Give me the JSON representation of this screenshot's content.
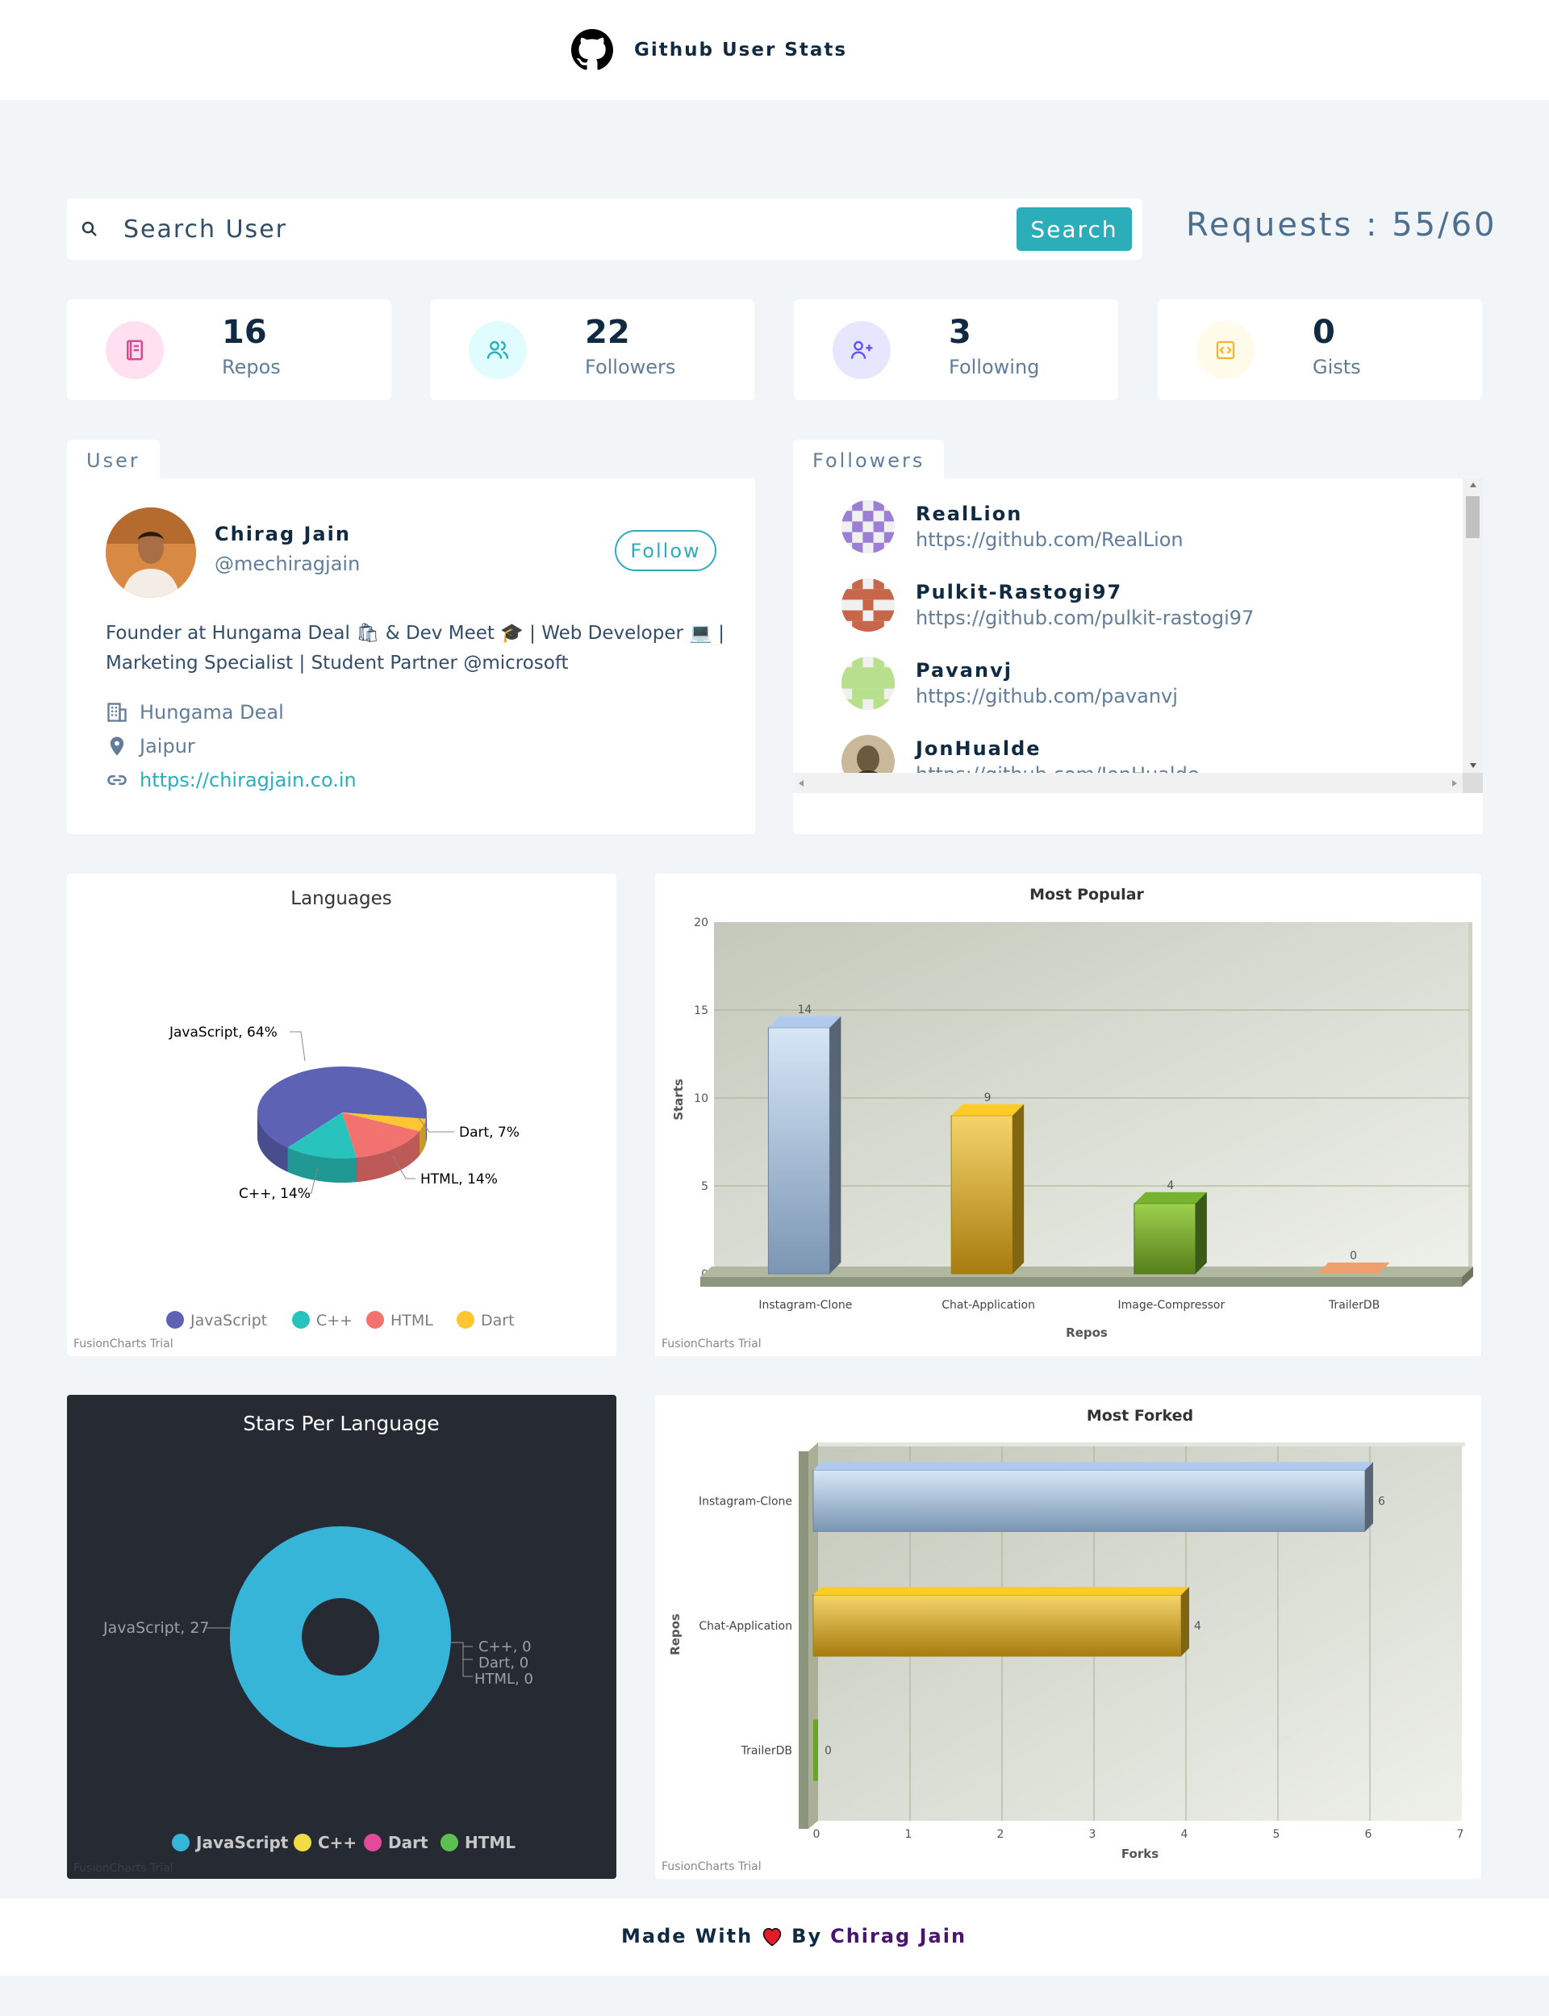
{
  "header": {
    "title": "Github User Stats",
    "logo_icon": "github-icon"
  },
  "search": {
    "placeholder": "Search User",
    "button_label": "Search",
    "requests_text": "Requests : 55/60"
  },
  "stats": [
    {
      "value": "16",
      "label": "Repos",
      "icon": "repo-book-icon",
      "color": "#da4a91",
      "bg": "#ffe0f0"
    },
    {
      "value": "22",
      "label": "Followers",
      "icon": "users-icon",
      "color": "#2caeba",
      "bg": "#e0fcff"
    },
    {
      "value": "3",
      "label": "Following",
      "icon": "user-plus-icon",
      "color": "#5d55fa",
      "bg": "#e6e6ff"
    },
    {
      "value": "0",
      "label": "Gists",
      "icon": "code-icon",
      "color": "#f0b429",
      "bg": "#fffbea"
    }
  ],
  "user": {
    "tab_label": "User",
    "name": "Chirag Jain",
    "login": "@mechiragjain",
    "follow_label": "Follow",
    "bio": "Founder at Hungama Deal 🛍 & Dev Meet 🎓 | Web Developer 💻 | Marketing Specialist | Student Partner @microsoft",
    "company": "Hungama Deal",
    "location": "Jaipur",
    "blog": "https://chiragjain.co.in"
  },
  "followers": {
    "tab_label": "Followers",
    "items": [
      {
        "name": "RealLion",
        "url": "https://github.com/RealLion",
        "color": "#9b7fd4"
      },
      {
        "name": "Pulkit-Rastogi97",
        "url": "https://github.com/pulkit-rastogi97",
        "color": "#c8664a"
      },
      {
        "name": "Pavanvj",
        "url": "https://github.com/pavanvj",
        "color": "#b6e08c"
      },
      {
        "name": "JonHualde",
        "url": "https://github.com/JonHualde",
        "color": "#6b5a3e"
      }
    ]
  },
  "charts": {
    "trial_text": "FusionCharts Trial",
    "languages": {
      "title": "Languages",
      "chart_data": {
        "type": "pie",
        "categories": [
          "JavaScript",
          "C++",
          "HTML",
          "Dart"
        ],
        "values": [
          64,
          14,
          14,
          7
        ],
        "slice_labels": [
          "JavaScript, 64%",
          "C++, 14%",
          "HTML, 14%",
          "Dart, 7%"
        ],
        "colors": [
          "#5d62b5",
          "#29c3be",
          "#f2726f",
          "#ffc533"
        ]
      }
    },
    "most_popular": {
      "title": "Most Popular",
      "chart_data": {
        "type": "bar",
        "categories": [
          "Instagram-Clone",
          "Chat-Application",
          "Image-Compressor",
          "TrailerDB"
        ],
        "values": [
          14,
          9,
          4,
          0
        ],
        "xlabel": "Repos",
        "ylabel": "Starts",
        "ylim": [
          0,
          20
        ],
        "yticks": [
          "0",
          "5",
          "10",
          "15",
          "20"
        ],
        "colors": [
          "#9fb8d8",
          "#e8b923",
          "#6ba32a",
          "#f0a070"
        ]
      }
    },
    "stars_per_language": {
      "title": "Stars Per Language",
      "chart_data": {
        "type": "pie",
        "categories": [
          "JavaScript",
          "C++",
          "Dart",
          "HTML"
        ],
        "values": [
          27,
          0,
          0,
          0
        ],
        "slice_labels": [
          "JavaScript, 27",
          "C++, 0",
          "Dart, 0",
          "HTML, 0"
        ],
        "colors": [
          "#36b5d8",
          "#f0dc46",
          "#e44a9a",
          "#5cbf52"
        ]
      }
    },
    "most_forked": {
      "title": "Most Forked",
      "chart_data": {
        "type": "bar",
        "orientation": "horizontal",
        "categories": [
          "Instagram-Clone",
          "Chat-Application",
          "TrailerDB"
        ],
        "values": [
          6,
          4,
          0
        ],
        "xlabel": "Forks",
        "ylabel": "Repos",
        "xlim": [
          0,
          7
        ],
        "xticks": [
          "0",
          "1",
          "2",
          "3",
          "4",
          "5",
          "6",
          "7"
        ],
        "colors": [
          "#9fb8d8",
          "#e8b923",
          "#6ba32a"
        ]
      }
    }
  },
  "footer": {
    "text": "Made With",
    "by": "By",
    "author": "Chirag Jain"
  }
}
